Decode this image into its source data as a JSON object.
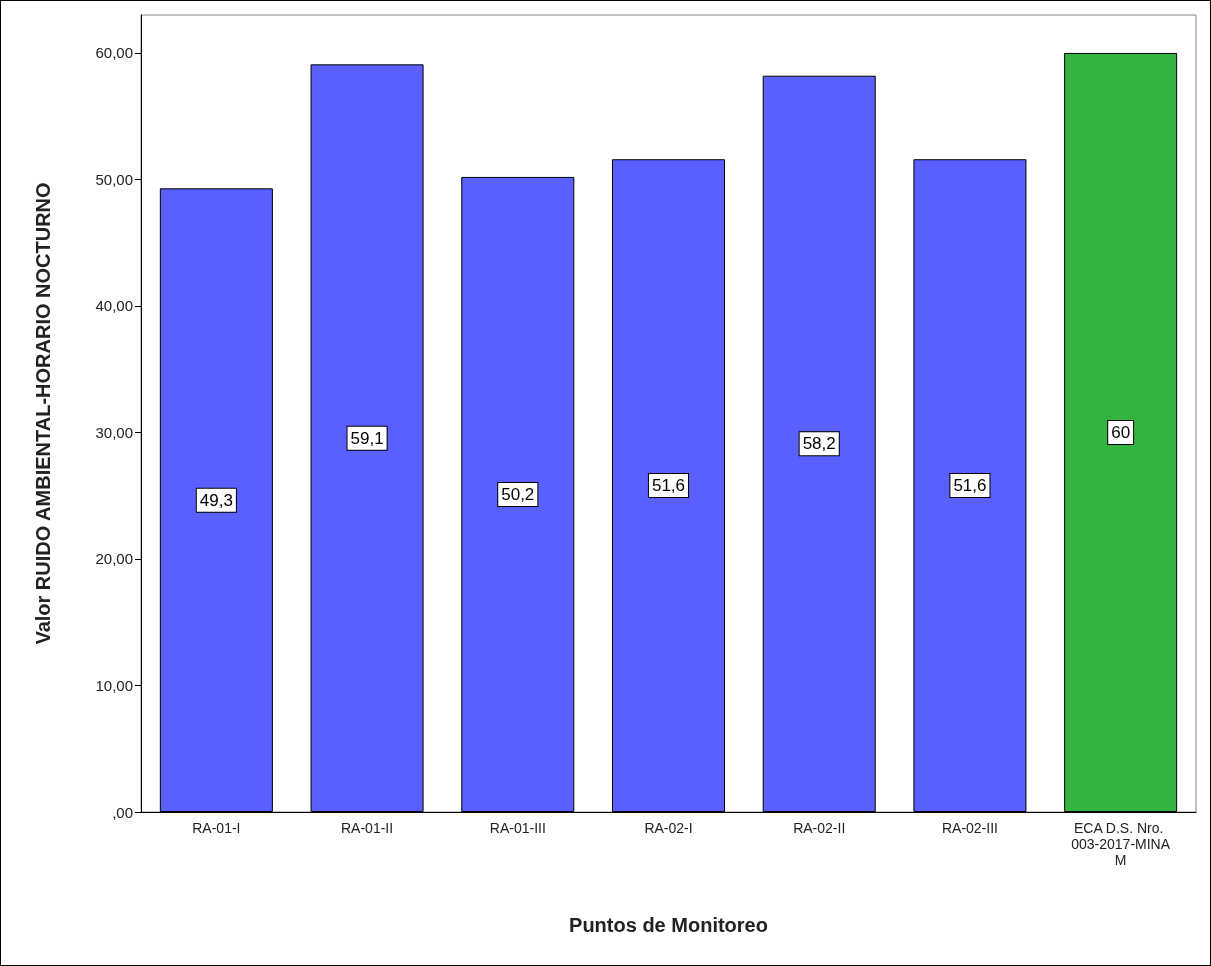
{
  "chart_data": {
    "type": "bar",
    "xlabel": "Puntos de Monitoreo",
    "ylabel": "Valor RUIDO AMBIENTAL-HORARIO NOCTURNO",
    "categories": [
      "RA-01-I",
      "RA-01-II",
      "RA-01-III",
      "RA-02-I",
      "RA-02-II",
      "RA-02-III",
      "ECA D.S. Nro. 003-2017-MINAM"
    ],
    "values": [
      49.3,
      59.1,
      50.2,
      51.6,
      58.2,
      51.6,
      60
    ],
    "colors": [
      "#5a5fff",
      "#5a5fff",
      "#5a5fff",
      "#5a5fff",
      "#5a5fff",
      "#5a5fff",
      "#33b440"
    ],
    "value_labels": [
      "49,3",
      "59,1",
      "50,2",
      "51,6",
      "58,2",
      "51,6",
      "60"
    ],
    "ylim": [
      0,
      63
    ],
    "yticks": [
      {
        "value": 0,
        "label": ",00"
      },
      {
        "value": 10,
        "label": "10,00"
      },
      {
        "value": 20,
        "label": "20,00"
      },
      {
        "value": 30,
        "label": "30,00"
      },
      {
        "value": 40,
        "label": "40,00"
      },
      {
        "value": 50,
        "label": "50,00"
      },
      {
        "value": 60,
        "label": "60,00"
      }
    ],
    "grid": false
  }
}
